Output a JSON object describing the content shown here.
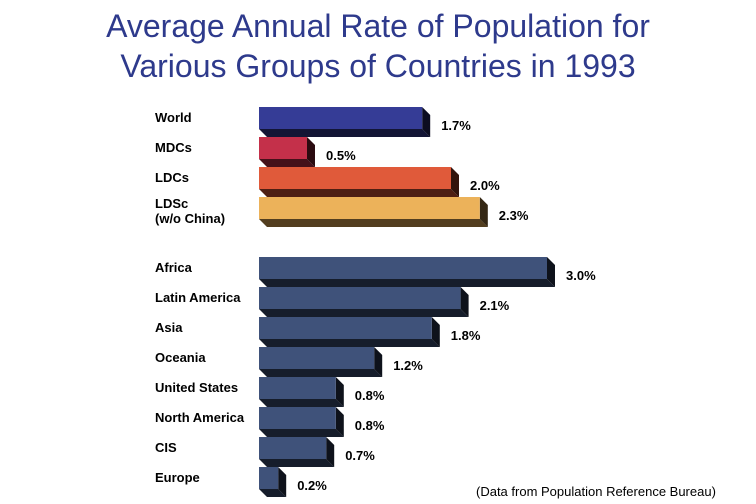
{
  "header": {
    "title_line1": "Average Annual Rate of Population for",
    "title_line2": "Various Groups of Countries in 1993"
  },
  "source": "(Data from Population Reference Bureau)",
  "chart_data": {
    "type": "bar",
    "orientation": "horizontal",
    "title": "Average Annual Rate of Population for Various Groups of Countries in 1993",
    "unit": "%",
    "groups": [
      {
        "name": "summary",
        "items": [
          {
            "label": [
              "World"
            ],
            "value": 1.7,
            "display": "1.7%",
            "color": "#353c96"
          },
          {
            "label": [
              "MDCs"
            ],
            "value": 0.5,
            "display": "0.5%",
            "color": "#c4304a"
          },
          {
            "label": [
              "LDCs"
            ],
            "value": 2.0,
            "display": "2.0%",
            "color": "#e05a3a"
          },
          {
            "label": [
              "LDSc",
              "(w/o China)"
            ],
            "value": 2.3,
            "display": "2.3%",
            "color": "#ecb25a"
          }
        ]
      },
      {
        "name": "regions",
        "items": [
          {
            "label": [
              "Africa"
            ],
            "value": 3.0,
            "display": "3.0%",
            "color": "#3f527a"
          },
          {
            "label": [
              "Latin America"
            ],
            "value": 2.1,
            "display": "2.1%",
            "color": "#3f527a"
          },
          {
            "label": [
              "Asia"
            ],
            "value": 1.8,
            "display": "1.8%",
            "color": "#3f527a"
          },
          {
            "label": [
              "Oceania"
            ],
            "value": 1.2,
            "display": "1.2%",
            "color": "#3f527a"
          },
          {
            "label": [
              "United States"
            ],
            "value": 0.8,
            "display": "0.8%",
            "color": "#3f527a"
          },
          {
            "label": [
              "North America"
            ],
            "value": 0.8,
            "display": "0.8%",
            "color": "#3f527a"
          },
          {
            "label": [
              "CIS"
            ],
            "value": 0.7,
            "display": "0.7%",
            "color": "#3f527a"
          },
          {
            "label": [
              "Europe"
            ],
            "value": 0.2,
            "display": "0.2%",
            "color": "#3f527a"
          }
        ]
      }
    ],
    "xlim": [
      0,
      3.0
    ],
    "grid": false,
    "legend": "none"
  }
}
